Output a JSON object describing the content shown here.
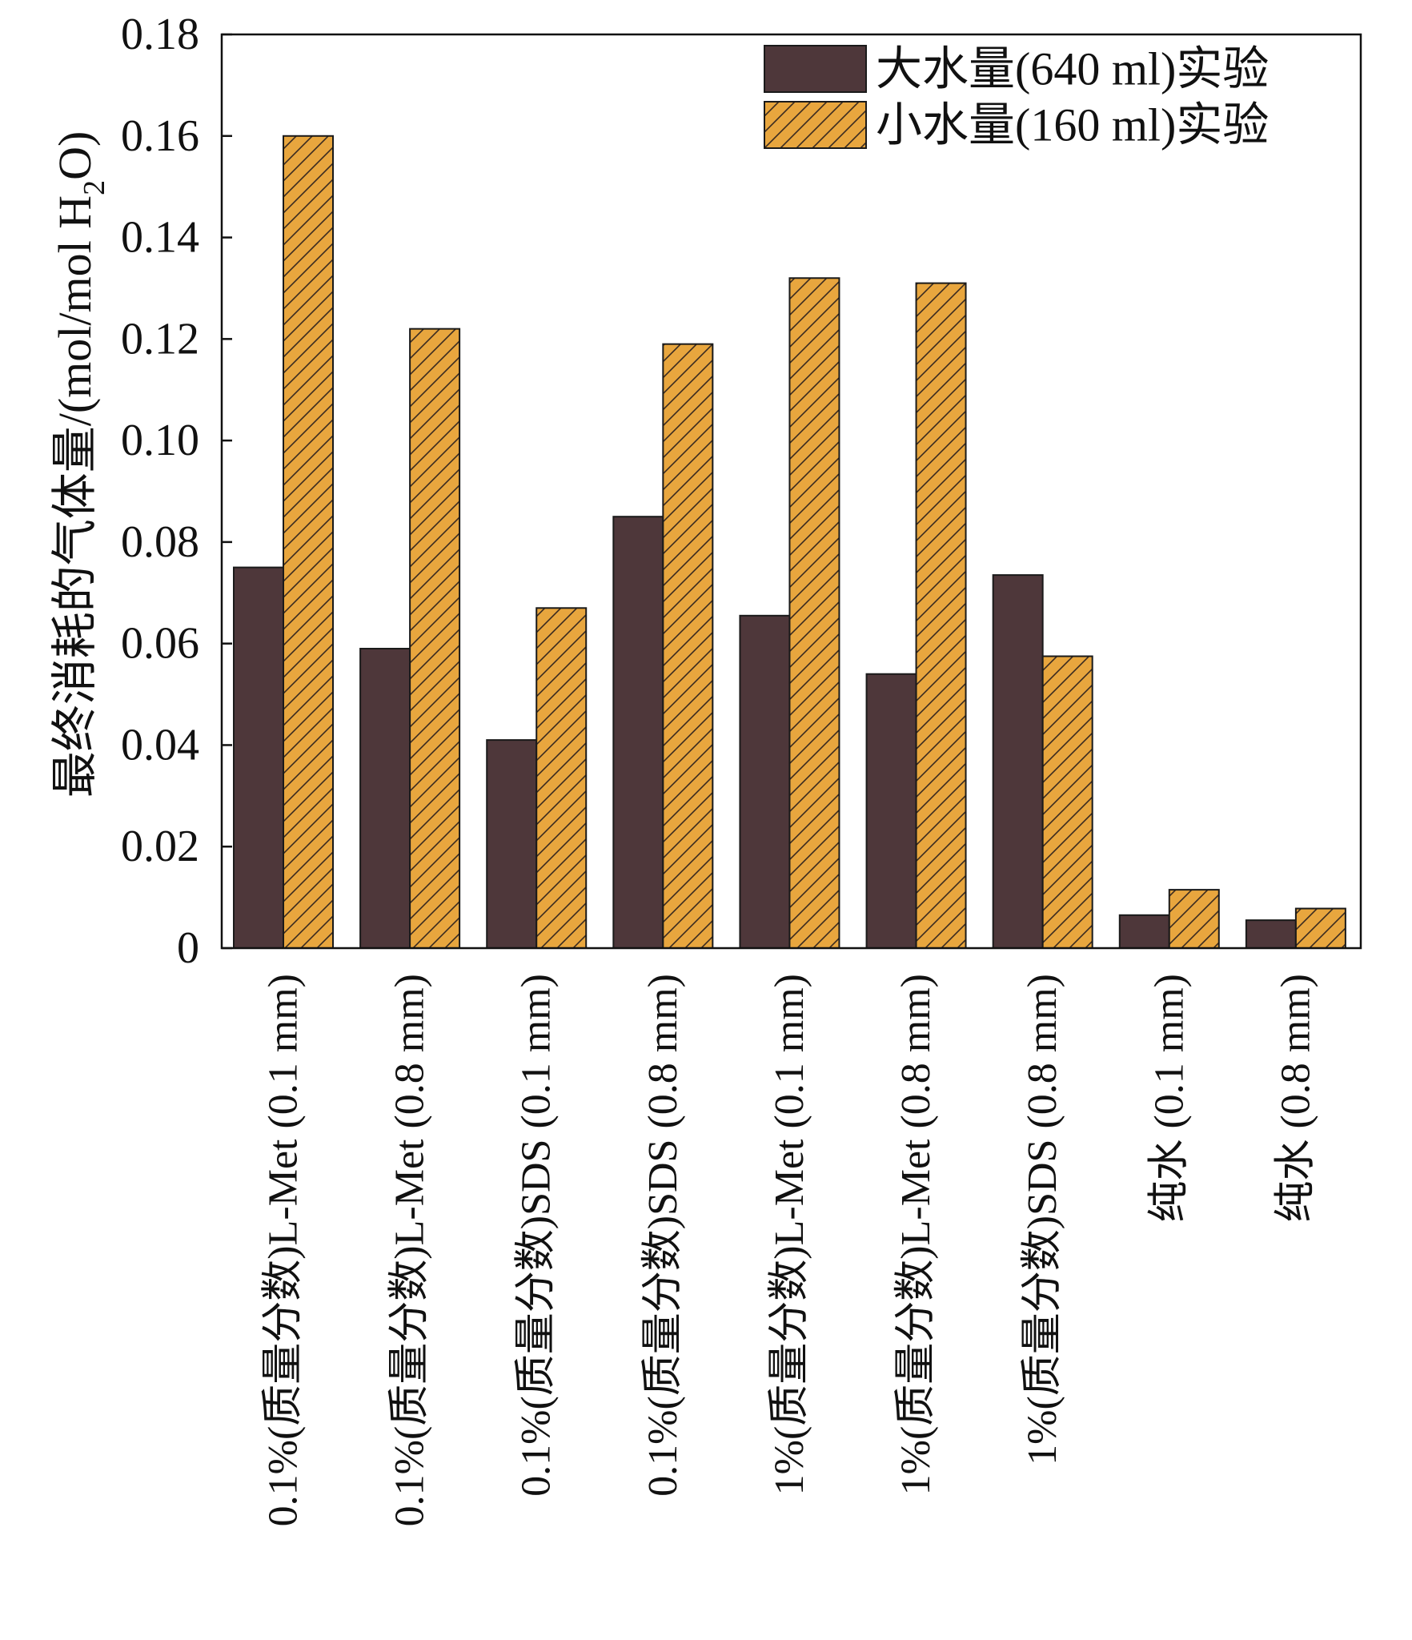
{
  "chart_data": {
    "type": "bar",
    "title": "",
    "ylabel": {
      "main": "最终消耗的气体量/(mol/mol H",
      "subscript": "2",
      "tail": "O)"
    },
    "xlabel": "",
    "ylim": [
      0,
      0.18
    ],
    "yticks": [
      0,
      0.02,
      0.04,
      0.06,
      0.08,
      0.1,
      0.12,
      0.14,
      0.16,
      0.18
    ],
    "ytick_labels": [
      "0",
      "0.02",
      "0.04",
      "0.06",
      "0.08",
      "0.10",
      "0.12",
      "0.14",
      "0.16",
      "0.18"
    ],
    "categories": [
      "0.1%(质量分数)L-Met (0.1 mm)",
      "0.1%(质量分数)L-Met (0.8 mm)",
      "0.1%(质量分数)SDS (0.1 mm)",
      "0.1%(质量分数)SDS (0.8 mm)",
      "1%(质量分数)L-Met (0.1 mm)",
      "1%(质量分数)L-Met (0.8 mm)",
      "1%(质量分数)SDS (0.8 mm)",
      "纯水 (0.1 mm)",
      "纯水 (0.8 mm)"
    ],
    "series": [
      {
        "name": "大水量(640 ml)实验",
        "color": "#4e373a",
        "pattern": "solid",
        "values": [
          0.075,
          0.059,
          0.041,
          0.085,
          0.0655,
          0.054,
          0.0735,
          0.0065,
          0.0055
        ]
      },
      {
        "name": "小水量(160 ml)实验",
        "color": "#e8a63e",
        "pattern": "hatch",
        "values": [
          0.16,
          0.122,
          0.067,
          0.119,
          0.132,
          0.131,
          0.0575,
          0.0115,
          0.0078
        ]
      }
    ],
    "legend_position": "top-right",
    "grid": false
  }
}
